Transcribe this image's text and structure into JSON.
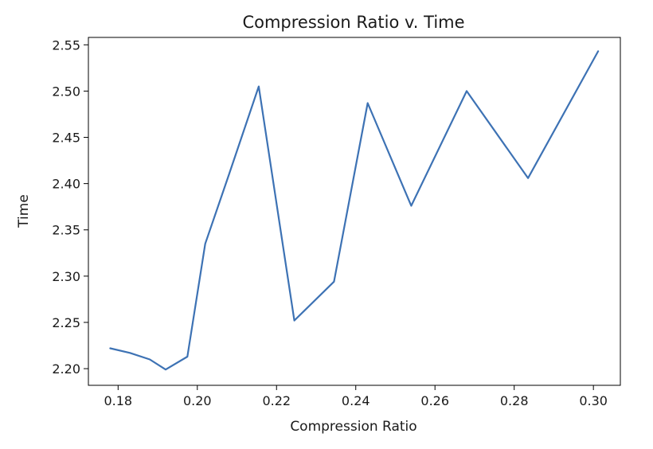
{
  "chart_data": {
    "type": "line",
    "title": "Compression Ratio v. Time",
    "xlabel": "Compression Ratio",
    "ylabel": "Time",
    "xlim": [
      0.1725,
      0.3068
    ],
    "ylim": [
      2.182,
      2.558
    ],
    "x_ticks": [
      0.18,
      0.2,
      0.22,
      0.24,
      0.26,
      0.28,
      0.3
    ],
    "x_tick_labels": [
      "0.18",
      "0.20",
      "0.22",
      "0.24",
      "0.26",
      "0.28",
      "0.30"
    ],
    "y_ticks": [
      2.2,
      2.25,
      2.3,
      2.35,
      2.4,
      2.45,
      2.5,
      2.55
    ],
    "y_tick_labels": [
      "2.20",
      "2.25",
      "2.30",
      "2.35",
      "2.40",
      "2.45",
      "2.50",
      "2.55"
    ],
    "grid": false,
    "line_color": "#3d72b4",
    "series": [
      {
        "x": [
          0.178,
          0.183,
          0.188,
          0.192,
          0.1975,
          0.202,
          0.208,
          0.2155,
          0.2245,
          0.2345,
          0.243,
          0.254,
          0.268,
          0.2835,
          0.3012
        ],
        "y": [
          2.222,
          2.217,
          2.21,
          2.199,
          2.213,
          2.335,
          2.41,
          2.505,
          2.252,
          2.294,
          2.487,
          2.376,
          2.5,
          2.406,
          2.543
        ]
      }
    ]
  }
}
